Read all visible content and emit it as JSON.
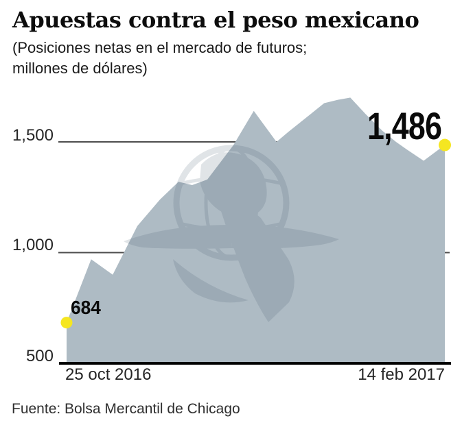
{
  "header": {
    "title": "Apuestas contra el peso mexicano",
    "subtitle_line1": "(Posiciones netas en el mercado de futuros;",
    "subtitle_line2": "millones de dólares)"
  },
  "footer": {
    "source": "Fuente: Bolsa Mercantil de Chicago"
  },
  "colors": {
    "area_fill": "#aebbc4",
    "watermark_ink": "#3a4f63",
    "gridline": "#4d4d4d",
    "axis": "#000000",
    "dot": "#f5e621",
    "text": "#262626"
  },
  "chart_data": {
    "type": "area",
    "title": "Apuestas contra el peso mexicano",
    "subtitle": "(Posiciones netas en el mercado de futuros; millones de dólares)",
    "source": "Fuente: Bolsa Mercantil de Chicago",
    "x_axis": {
      "start_label": "25 oct 2016",
      "end_label": "14 feb 2017"
    },
    "y_axis": {
      "ticks": [
        1500,
        1000,
        500
      ],
      "tick_labels": [
        "1,500",
        "1,000",
        "500"
      ],
      "range": [
        500,
        1750
      ],
      "grid": true
    },
    "legend": "none",
    "annotations": {
      "first_point_label": "684",
      "last_point_label": "1,486"
    },
    "series": [
      {
        "name": "Posiciones netas contra el peso mexicano (millones de dólares)",
        "x_frac": [
          0,
          0.065,
          0.122,
          0.187,
          0.247,
          0.296,
          0.332,
          0.372,
          0.441,
          0.495,
          0.555,
          0.586,
          0.641,
          0.681,
          0.717,
          0.75,
          0.791,
          0.835,
          0.871,
          0.9,
          0.944,
          1
        ],
        "values": [
          684,
          970,
          900,
          1120,
          1240,
          1320,
          1305,
          1330,
          1485,
          1640,
          1500,
          1545,
          1620,
          1675,
          1690,
          1700,
          1625,
          1550,
          1500,
          1465,
          1415,
          1486
        ]
      }
    ]
  }
}
